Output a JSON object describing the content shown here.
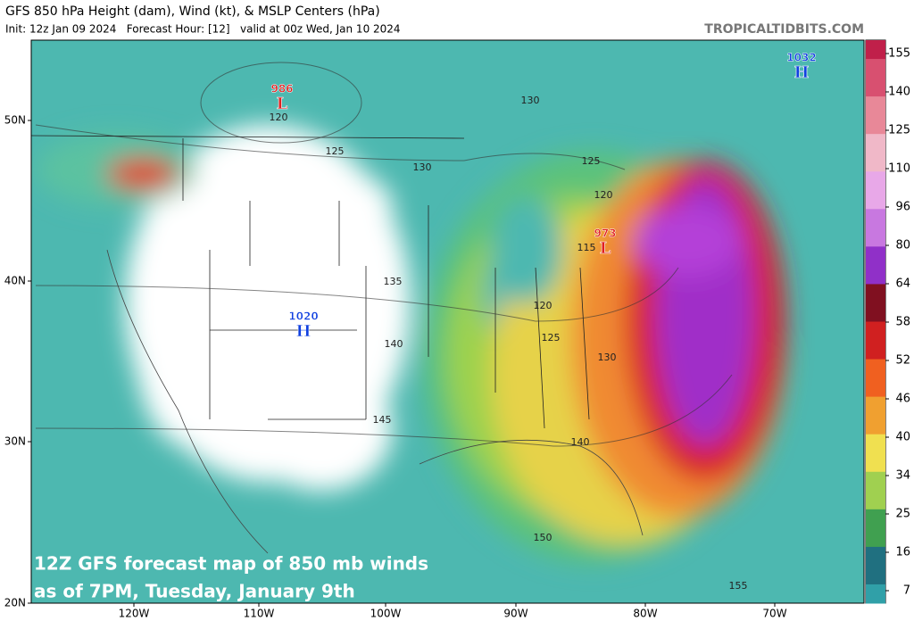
{
  "header": {
    "title": "GFS 850 hPa Height (dam), Wind (kt), & MSLP Centers (hPa)",
    "subtitle": "Init: 12z Jan 09 2024   Forecast Hour: [12]   valid at 00z Wed, Jan 10 2024",
    "credit": "TROPICALTIDBITS.COM"
  },
  "colorbar": {
    "labels": [
      155,
      140,
      125,
      110,
      96,
      80,
      64,
      58,
      52,
      46,
      40,
      34,
      25,
      16,
      7
    ]
  },
  "map": {
    "lat_labels": [
      "50N",
      "40N",
      "30N",
      "20N"
    ],
    "lon_labels": [
      "120W",
      "110W",
      "100W",
      "90W",
      "80W",
      "70W"
    ],
    "centers": [
      {
        "pressure": "986",
        "letter": "L"
      },
      {
        "pressure": "1020",
        "letter": "H"
      },
      {
        "pressure": "1032",
        "letter": "H"
      },
      {
        "pressure": "973",
        "letter": "L"
      }
    ],
    "contour_labels": [
      "130",
      "120",
      "125",
      "130",
      "125",
      "120",
      "115",
      "135",
      "120",
      "125",
      "140",
      "130",
      "145",
      "140",
      "150",
      "155"
    ]
  },
  "caption": {
    "lines": [
      "12Z GFS forecast map of 850 mb winds",
      "as of 7PM, Tuesday, January 9th"
    ]
  }
}
